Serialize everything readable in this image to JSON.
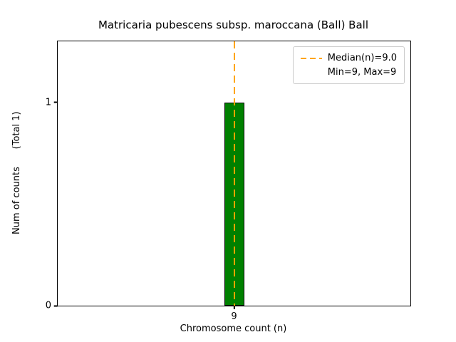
{
  "figure": {
    "title": "Matricaria pubescens subsp. maroccana (Ball) Ball",
    "xlabel": "Chromosome count (n)",
    "ylabel": "Num of counts      (Total 1)",
    "legend": [
      {
        "label": "Median(n)=9.0",
        "sample": "dashed-line"
      },
      {
        "label": "Min=9, Max=9",
        "sample": "none"
      }
    ]
  },
  "chart_data": {
    "type": "bar",
    "title": "Matricaria pubescens subsp. maroccana (Ball) Ball",
    "xlabel": "Chromosome count (n)",
    "ylabel": "Num of counts (Total 1)",
    "categories": [
      "9"
    ],
    "x": [
      9
    ],
    "values": [
      1
    ],
    "total_counts": 1,
    "bar_color": "#008000",
    "bar_edge_color": "#000000",
    "median_line": {
      "x": 9,
      "value": 9.0,
      "color": "#FFA500",
      "style": "dashed",
      "label": "Median(n)=9.0"
    },
    "min": 9,
    "max": 9,
    "xlim": [
      8.45,
      9.55
    ],
    "ylim": [
      0,
      1.3
    ],
    "yticks": [
      0,
      1
    ],
    "ytick_labels": [
      "0",
      "1"
    ],
    "xticks": [
      9
    ],
    "xtick_labels": [
      "9"
    ],
    "grid": false,
    "legend_position": "upper right"
  }
}
